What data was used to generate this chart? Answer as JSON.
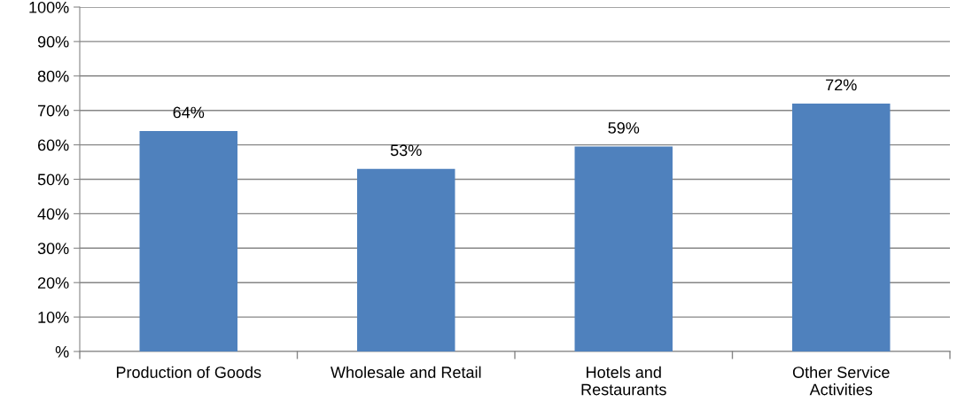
{
  "chart_data": {
    "type": "bar",
    "categories": [
      "Production of Goods",
      "Wholesale and Retail",
      "Hotels and\nRestaurants",
      "Other Service\nActivities"
    ],
    "values": [
      64,
      53,
      59.5,
      72
    ],
    "value_labels": [
      "64%",
      "53%",
      "59%",
      "72%"
    ],
    "color": "#4f81bd",
    "ylim": [
      0,
      100
    ],
    "yticks": [
      {
        "value": 0,
        "label": "%"
      },
      {
        "value": 10,
        "label": "10%"
      },
      {
        "value": 20,
        "label": "20%"
      },
      {
        "value": 30,
        "label": "30%"
      },
      {
        "value": 40,
        "label": "40%"
      },
      {
        "value": 50,
        "label": "50%"
      },
      {
        "value": 60,
        "label": "60%"
      },
      {
        "value": 70,
        "label": "70%"
      },
      {
        "value": 80,
        "label": "80%"
      },
      {
        "value": 90,
        "label": "90%"
      },
      {
        "value": 100,
        "label": "100%"
      }
    ],
    "grid": "y",
    "legend": false
  }
}
